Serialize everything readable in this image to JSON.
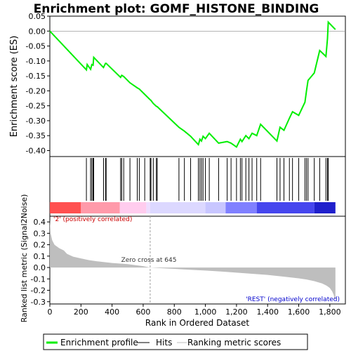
{
  "chart_data": {
    "type": "line",
    "title": "Enrichment plot: GOMF_HISTONE_BINDING",
    "xlabel": "Rank in Ordered Dataset",
    "es_ylabel": "Enrichment score (ES)",
    "metric_ylabel": "Ranked list metric (Signal2Noise)",
    "xlim": [
      0,
      1900
    ],
    "es_ylim": [
      -0.42,
      0.05
    ],
    "metric_ylim": [
      -0.32,
      0.45
    ],
    "x_ticks": [
      0,
      200,
      400,
      600,
      800,
      1000,
      1200,
      1400,
      1600,
      1800
    ],
    "x_tick_labels": [
      "0",
      "200",
      "400",
      "600",
      "800",
      "1,000",
      "1,200",
      "1,400",
      "1,600",
      "1,800"
    ],
    "es_ticks": [
      0.05,
      0.0,
      -0.05,
      -0.1,
      -0.15,
      -0.2,
      -0.25,
      -0.3,
      -0.35,
      -0.4
    ],
    "es_tick_labels": [
      "0.05",
      "0.00",
      "-0.05",
      "-0.10",
      "-0.15",
      "-0.20",
      "-0.25",
      "-0.30",
      "-0.35",
      "-0.40"
    ],
    "metric_ticks": [
      0.4,
      0.3,
      0.2,
      0.1,
      0.0,
      -0.1,
      -0.2,
      -0.3
    ],
    "metric_tick_labels": [
      "0.4",
      "0.3",
      "0.2",
      "0.1",
      "0.0",
      "-0.1",
      "-0.2",
      "-0.3"
    ],
    "n_genes": 1836,
    "zero_cross_rank": 645,
    "zero_cross_label": "Zero cross at 645",
    "pos_label": "'2' (positively correlated)",
    "neg_label": "'REST' (negatively correlated)",
    "legend": {
      "placement": "bottom",
      "items": [
        "Enrichment profile",
        "Hits",
        "Ranking metric scores"
      ]
    },
    "colors": {
      "es_line": "#00ee00",
      "hits": "#000000",
      "metric_fill": "#bebebe",
      "zero_cross_line": "#a0a0a0",
      "pos_label": "#cc0000",
      "neg_label": "#0000cc"
    },
    "enrichment_profile": {
      "x": [
        0,
        235,
        240,
        262,
        270,
        278,
        282,
        345,
        358,
        362,
        455,
        462,
        475,
        515,
        562,
        575,
        610,
        645,
        650,
        665,
        685,
        690,
        830,
        865,
        905,
        955,
        965,
        975,
        985,
        1000,
        1025,
        1085,
        1140,
        1165,
        1200,
        1225,
        1235,
        1260,
        1280,
        1300,
        1330,
        1355,
        1460,
        1480,
        1505,
        1540,
        1560,
        1600,
        1640,
        1650,
        1660,
        1700,
        1735,
        1775,
        1785,
        1790,
        1836
      ],
      "y": [
        0.0,
        -0.13,
        -0.112,
        -0.128,
        -0.112,
        -0.114,
        -0.088,
        -0.122,
        -0.108,
        -0.108,
        -0.155,
        -0.148,
        -0.152,
        -0.173,
        -0.19,
        -0.194,
        -0.212,
        -0.23,
        -0.232,
        -0.242,
        -0.252,
        -0.253,
        -0.322,
        -0.335,
        -0.352,
        -0.38,
        -0.362,
        -0.368,
        -0.352,
        -0.36,
        -0.342,
        -0.375,
        -0.37,
        -0.375,
        -0.388,
        -0.362,
        -0.37,
        -0.35,
        -0.36,
        -0.342,
        -0.35,
        -0.312,
        -0.368,
        -0.322,
        -0.332,
        -0.292,
        -0.27,
        -0.282,
        -0.238,
        -0.2,
        -0.165,
        -0.14,
        -0.065,
        -0.085,
        -0.025,
        0.03,
        0.005
      ]
    },
    "hits": [
      235,
      262,
      270,
      278,
      282,
      345,
      358,
      362,
      455,
      462,
      475,
      515,
      562,
      575,
      610,
      645,
      650,
      665,
      685,
      690,
      830,
      865,
      905,
      955,
      965,
      975,
      985,
      1000,
      1025,
      1085,
      1140,
      1165,
      1200,
      1225,
      1235,
      1260,
      1280,
      1300,
      1330,
      1355,
      1460,
      1480,
      1505,
      1540,
      1560,
      1600,
      1640,
      1650,
      1660,
      1700,
      1735,
      1775,
      1785,
      1790
    ],
    "ranking_metric": {
      "x": [
        0,
        5,
        15,
        30,
        60,
        90,
        110,
        150,
        200,
        250,
        300,
        400,
        500,
        600,
        645,
        700,
        800,
        900,
        1000,
        1100,
        1200,
        1300,
        1400,
        1500,
        1600,
        1650,
        1700,
        1750,
        1780,
        1800,
        1815,
        1825,
        1830,
        1836
      ],
      "y": [
        0.42,
        0.3,
        0.24,
        0.2,
        0.17,
        0.15,
        0.12,
        0.095,
        0.08,
        0.065,
        0.055,
        0.04,
        0.03,
        0.012,
        0.0,
        -0.005,
        -0.012,
        -0.02,
        -0.027,
        -0.035,
        -0.045,
        -0.055,
        -0.065,
        -0.08,
        -0.095,
        -0.105,
        -0.12,
        -0.14,
        -0.16,
        -0.18,
        -0.21,
        -0.24,
        -0.275,
        -0.275
      ]
    }
  }
}
